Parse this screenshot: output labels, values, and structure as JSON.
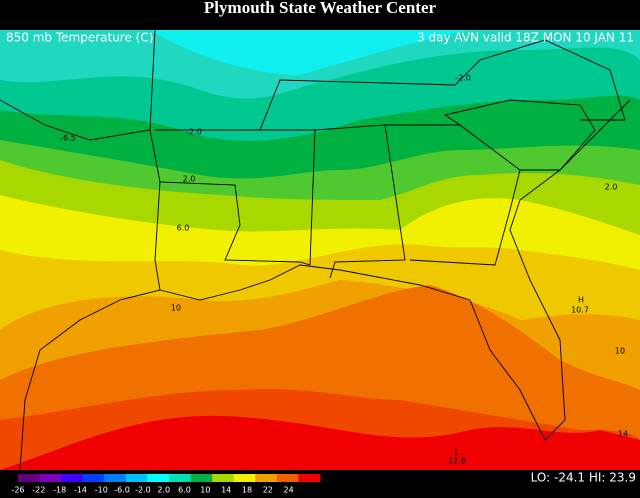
{
  "header": {
    "title": "Plymouth State Weather Center",
    "field": "850 mb Temperature (C)",
    "valid": "3 day AVN valid 18Z MON 10 JAN 11"
  },
  "contour_labels": [
    "-6.5",
    "-2.0",
    "-2.0",
    "2.0",
    "2.0",
    "6.0",
    "10",
    "H",
    "10.7",
    "10",
    "14",
    "L",
    "12.8"
  ],
  "legend": {
    "labels": [
      "-26",
      "-22",
      "-18",
      "-14",
      "-10",
      "-6.0",
      "-2.0",
      "2.0",
      "6.0",
      "10",
      "14",
      "18",
      "22",
      "24"
    ],
    "colors": [
      "#600080",
      "#8000c0",
      "#4000ff",
      "#0040ff",
      "#0080ff",
      "#00c0ff",
      "#00ffff",
      "#00e0b0",
      "#00b040",
      "#a8d800",
      "#f0f000",
      "#f0a000",
      "#f06000",
      "#f00000"
    ]
  },
  "footer": {
    "stats": "LO: -24.1  HI: 23.9"
  }
}
